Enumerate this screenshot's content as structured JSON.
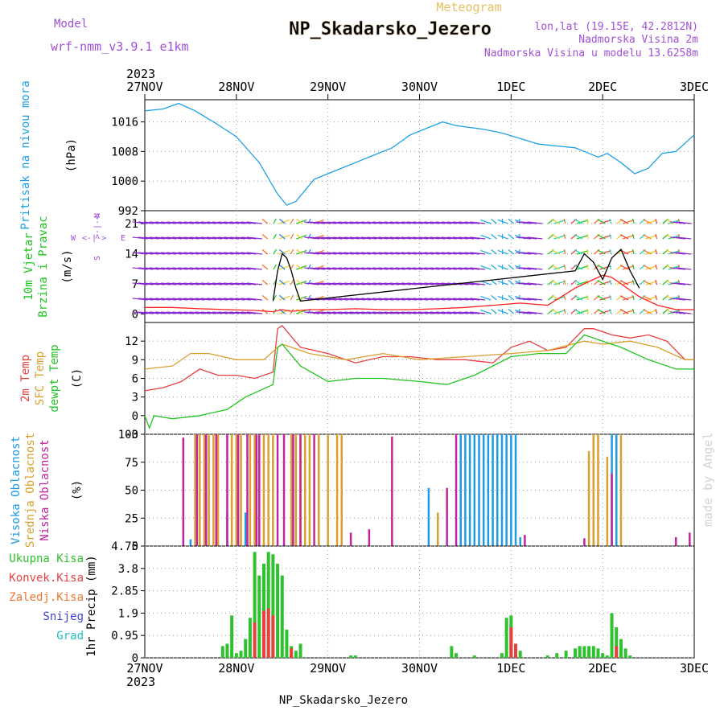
{
  "header": {
    "model_label": "Model",
    "model_name": "wrf-nmm_v3.9.1  e1km",
    "product": "Meteogram",
    "station": "NP_Skadarsko_Jezero",
    "coords": "lon,lat (19.15E, 42.2812N)",
    "altitude": "Nadmorska Visina 2m",
    "model_altitude": "Nadmorska Visina u modelu 13.6258m",
    "footer_station": "NP_Skadarsko_Jezero",
    "credit": "made by Angel"
  },
  "time_axis": {
    "year": "2023",
    "ticks": [
      "27NOV",
      "28NOV",
      "29NOV",
      "30NOV",
      "1DEC",
      "2DEC",
      "3DEC"
    ]
  },
  "chart_data": [
    {
      "type": "line",
      "panel": "pressure",
      "ylabel_lines": [
        "Pritisak na nivou mora"
      ],
      "unit": "(hPa)",
      "ylim": [
        992,
        1022
      ],
      "yticks": [
        992,
        1000,
        1008,
        1016
      ],
      "grid": true,
      "colors": {
        "pressure": "#1fa0e6"
      },
      "series": [
        {
          "name": "Pritisak na nivou mora",
          "x": [
            0,
            0.2,
            0.37,
            0.55,
            0.75,
            1.0,
            1.25,
            1.45,
            1.55,
            1.65,
            1.75,
            1.85,
            2.0,
            2.15,
            2.3,
            2.5,
            2.7,
            2.9,
            3.1,
            3.25,
            3.4,
            3.55,
            3.7,
            3.9,
            4.1,
            4.3,
            4.5,
            4.7,
            4.85,
            4.95,
            5.05,
            5.2,
            5.35,
            5.5,
            5.65,
            5.8,
            6.0
          ],
          "y": [
            1019,
            1019.5,
            1021,
            1019,
            1016,
            1012,
            1005,
            996.5,
            993.5,
            994.5,
            997.5,
            1000.5,
            1002,
            1003.5,
            1005,
            1007,
            1009,
            1012.5,
            1014.5,
            1016,
            1015,
            1014.5,
            1014,
            1013,
            1011.5,
            1010,
            1009.5,
            1009,
            1007.5,
            1006.5,
            1007.5,
            1005,
            1002,
            1003.5,
            1007.5,
            1008,
            1012.5
          ]
        }
      ]
    },
    {
      "type": "line",
      "panel": "wind",
      "ylabel_lines": [
        "10m Vjetar",
        "Brzina i Pravac"
      ],
      "unit": "(m/s)",
      "compass": {
        "n": "N",
        "s": "S",
        "w": "W",
        "e": "E"
      },
      "ylim": [
        -2,
        24
      ],
      "yticks": [
        0,
        7,
        14,
        21
      ],
      "grid": true,
      "colors": {
        "speed": "#ff2020",
        "gust": "#000000"
      },
      "series": [
        {
          "name": "speed",
          "x": [
            0,
            0.3,
            0.6,
            0.9,
            1.2,
            1.4,
            1.5,
            1.6,
            1.7,
            1.8,
            2.0,
            2.3,
            2.6,
            2.9,
            3.2,
            3.5,
            3.8,
            4.1,
            4.4,
            4.7,
            4.9,
            5.0,
            5.1,
            5.2,
            5.4,
            5.6,
            5.8,
            6.0
          ],
          "y": [
            1.5,
            1.5,
            1.2,
            1.0,
            0.8,
            0.5,
            1.0,
            0.6,
            0.8,
            1.0,
            1.0,
            1.2,
            1.0,
            1.0,
            1.2,
            1.5,
            2.0,
            2.5,
            2.0,
            6.0,
            8.0,
            9.0,
            8.5,
            7.0,
            4.0,
            2.0,
            1.0,
            1.0
          ]
        },
        {
          "name": "gust",
          "x": [
            1.4,
            1.45,
            1.5,
            1.55,
            1.6,
            1.65,
            1.7,
            4.7,
            4.8,
            4.9,
            5.0,
            5.1,
            5.2,
            5.3,
            5.4
          ],
          "y": [
            3,
            10,
            14,
            13,
            10,
            6,
            3,
            10,
            14,
            12,
            8,
            13,
            15,
            10,
            6
          ]
        }
      ]
    },
    {
      "type": "line",
      "panel": "temperature",
      "ylabel_lines": [
        "2m Temp",
        "SFC Temp",
        "dewpt Temp"
      ],
      "unit": "(C)",
      "ylim": [
        -3,
        15
      ],
      "yticks": [
        -3,
        0,
        3,
        6,
        9,
        12
      ],
      "grid": true,
      "colors": {
        "t2m": "#e84040",
        "sfc": "#d9a030",
        "dewpt": "#22c422"
      },
      "series": [
        {
          "name": "2m Temp",
          "x": [
            0,
            0.2,
            0.4,
            0.6,
            0.8,
            1.0,
            1.2,
            1.4,
            1.45,
            1.5,
            1.7,
            2.0,
            2.3,
            2.6,
            2.9,
            3.2,
            3.5,
            3.8,
            4.0,
            4.2,
            4.4,
            4.6,
            4.8,
            4.9,
            5.1,
            5.3,
            5.5,
            5.7,
            5.9,
            6.0
          ],
          "y": [
            4,
            4.5,
            5.5,
            7.5,
            6.5,
            6.5,
            6,
            7,
            14,
            14.5,
            11,
            10,
            8.5,
            9.5,
            9.5,
            9,
            9,
            8.5,
            11,
            12,
            10.5,
            11,
            14,
            14,
            13,
            12.5,
            13,
            12,
            9,
            9
          ]
        },
        {
          "name": "SFC Temp",
          "x": [
            0,
            0.3,
            0.5,
            0.7,
            1.0,
            1.3,
            1.45,
            1.5,
            1.8,
            2.2,
            2.6,
            3.0,
            3.5,
            4.0,
            4.4,
            4.8,
            5.0,
            5.3,
            5.6,
            5.9,
            6.0
          ],
          "y": [
            7.5,
            8,
            10,
            10,
            9,
            9,
            11,
            11.5,
            10,
            9,
            10,
            9,
            9.5,
            10,
            10.5,
            12,
            11.5,
            12,
            11,
            9,
            9
          ]
        },
        {
          "name": "dewpt Temp",
          "x": [
            0,
            0.05,
            0.1,
            0.3,
            0.6,
            0.9,
            1.1,
            1.4,
            1.45,
            1.5,
            1.7,
            2.0,
            2.3,
            2.6,
            3.0,
            3.3,
            3.6,
            4.0,
            4.3,
            4.6,
            4.8,
            5.0,
            5.2,
            5.5,
            5.8,
            6.0
          ],
          "y": [
            0,
            -2,
            0,
            -0.5,
            0,
            1,
            3,
            5,
            11,
            11.5,
            8,
            5.5,
            6,
            6,
            5.5,
            5,
            6.5,
            9.5,
            10,
            10,
            13,
            12,
            11,
            9,
            7.5,
            7.5
          ]
        }
      ]
    },
    {
      "type": "bar",
      "panel": "clouds",
      "ylabel_lines": [
        "Visoka Oblacnost",
        "Srednja Oblacnost",
        "Niska Oblacnost"
      ],
      "unit": "(%)",
      "ylim": [
        0,
        100
      ],
      "yticks": [
        0,
        25,
        50,
        75,
        100
      ],
      "grid": true,
      "colors": {
        "high": "#1e9ae6",
        "mid": "#d9a030",
        "low": "#c0259d"
      },
      "series": [
        {
          "name": "Visoka Oblacnost",
          "x": [
            0.5,
            0.9,
            1.1,
            3.1,
            3.45,
            3.5,
            3.55,
            3.6,
            3.65,
            3.7,
            3.75,
            3.8,
            3.85,
            3.9,
            3.95,
            4.0,
            4.05,
            4.1,
            5.1,
            5.15
          ],
          "y": [
            6,
            30,
            30,
            52,
            100,
            100,
            100,
            100,
            100,
            100,
            100,
            100,
            100,
            100,
            100,
            100,
            100,
            8,
            100,
            100
          ]
        },
        {
          "name": "Srednja Oblacnost",
          "x": [
            0.55,
            0.6,
            0.65,
            0.7,
            0.75,
            0.8,
            0.95,
            1.0,
            1.05,
            1.15,
            1.2,
            1.3,
            1.35,
            1.4,
            1.6,
            1.65,
            1.7,
            1.75,
            1.8,
            1.9,
            2.0,
            2.1,
            2.15,
            3.2,
            4.85,
            4.9,
            4.95,
            5.05,
            5.2
          ],
          "y": [
            100,
            100,
            100,
            100,
            100,
            100,
            100,
            100,
            100,
            100,
            100,
            100,
            100,
            100,
            100,
            100,
            100,
            100,
            100,
            100,
            100,
            100,
            100,
            30,
            85,
            100,
            100,
            80,
            100
          ]
        },
        {
          "name": "Niska Oblacnost",
          "x": [
            0.42,
            0.57,
            0.67,
            0.78,
            0.9,
            1.02,
            1.12,
            1.22,
            1.25,
            1.45,
            1.52,
            1.62,
            1.7,
            1.85,
            2.25,
            2.45,
            2.7,
            3.3,
            3.4,
            4.15,
            4.8,
            5.1,
            5.8,
            5.95
          ],
          "y": [
            97,
            100,
            100,
            100,
            100,
            100,
            100,
            100,
            100,
            100,
            100,
            100,
            100,
            100,
            12,
            15,
            98,
            52,
            100,
            10,
            7,
            65,
            8,
            12
          ]
        }
      ]
    },
    {
      "type": "bar",
      "panel": "precipitation",
      "ylabel_lines": [
        "1hr Precip"
      ],
      "unit": "(mm)",
      "legend": [
        "Ukupna Kisa",
        "Konvek.Kisa",
        "Zaledj.Kisa",
        "Snijeg",
        "Grad"
      ],
      "ylim": [
        0,
        4.75
      ],
      "yticks": [
        0,
        0.95,
        1.9,
        2.85,
        3.8,
        4.75
      ],
      "grid": true,
      "colors": {
        "total": "#2ec22e",
        "conv": "#e84040",
        "frozen": "#f07830",
        "snow": "#4040e0",
        "hail": "#20c0c0"
      },
      "series": [
        {
          "name": "Ukupna Kisa",
          "x": [
            0.85,
            0.9,
            0.95,
            1.0,
            1.05,
            1.1,
            1.15,
            1.2,
            1.25,
            1.3,
            1.35,
            1.4,
            1.45,
            1.5,
            1.55,
            1.6,
            1.65,
            1.7,
            2.25,
            2.3,
            3.35,
            3.4,
            3.6,
            3.9,
            3.95,
            4.0,
            4.05,
            4.1,
            4.4,
            4.5,
            4.6,
            4.7,
            4.75,
            4.8,
            4.85,
            4.9,
            4.95,
            5.0,
            5.05,
            5.1,
            5.15,
            5.2,
            5.25,
            5.3
          ],
          "y": [
            0.5,
            0.6,
            1.8,
            0.2,
            0.3,
            0.8,
            1.7,
            4.5,
            3.5,
            4.0,
            4.5,
            4.4,
            4.0,
            3.5,
            1.2,
            0.5,
            0.3,
            0.6,
            0.1,
            0.1,
            0.5,
            0.2,
            0.1,
            0.2,
            1.7,
            1.8,
            0.6,
            0.3,
            0.1,
            0.2,
            0.3,
            0.4,
            0.5,
            0.5,
            0.5,
            0.5,
            0.4,
            0.2,
            0.1,
            1.9,
            1.3,
            0.8,
            0.4,
            0.1
          ]
        },
        {
          "name": "Konvek.Kisa",
          "x": [
            1.2,
            1.3,
            1.35,
            1.4,
            1.6,
            4.0,
            4.05,
            5.15
          ],
          "y": [
            1.5,
            2.0,
            2.1,
            1.8,
            0.4,
            1.3,
            0.6,
            0.5
          ]
        }
      ]
    }
  ]
}
